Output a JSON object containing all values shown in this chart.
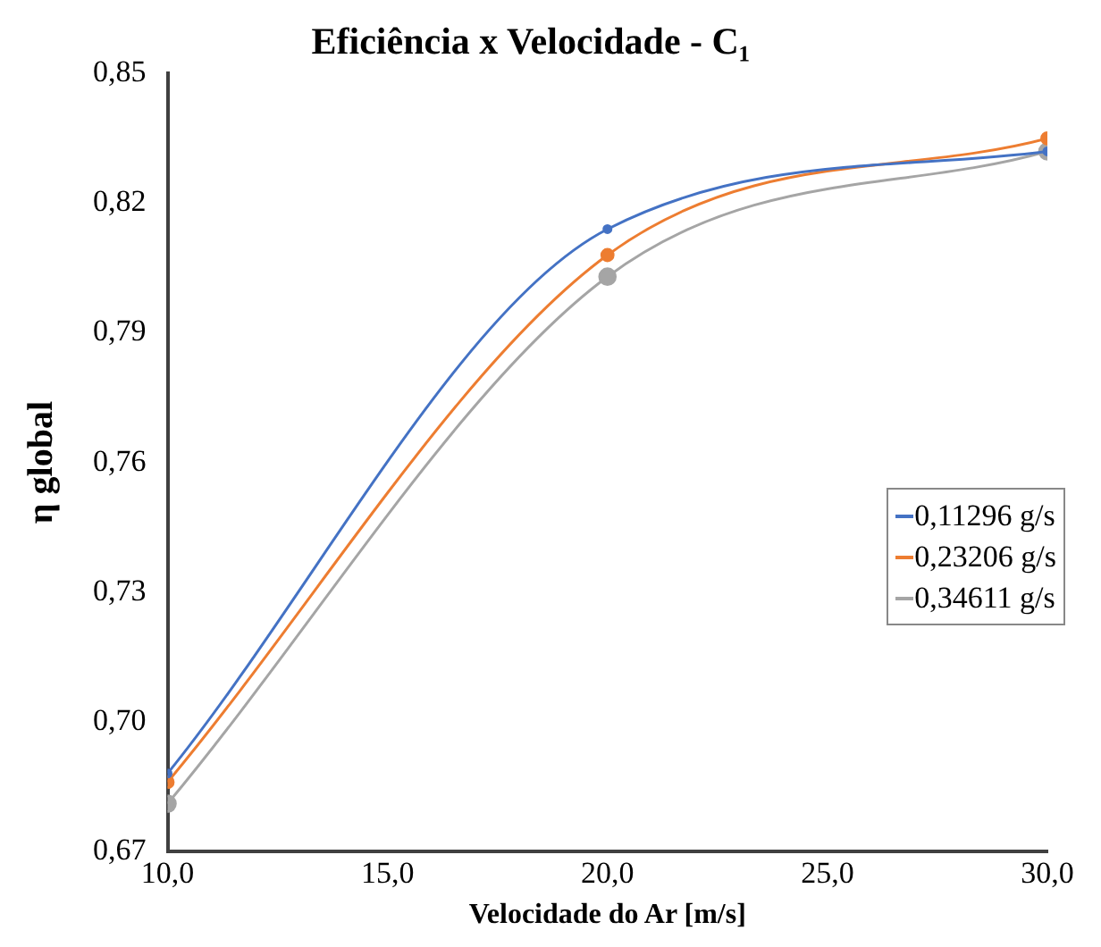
{
  "chart_data": {
    "type": "line",
    "title": "Eficiência x Velocidade - C₁",
    "xlabel": "Velocidade do Ar [m/s]",
    "ylabel": "η global",
    "x": [
      10,
      20,
      30
    ],
    "series": [
      {
        "name": "0,11296 g/s",
        "color": "#4472c4",
        "values": [
          0.688,
          0.814,
          0.832
        ]
      },
      {
        "name": "0,23206 g/s",
        "color": "#ed7d31",
        "values": [
          0.686,
          0.808,
          0.835
        ]
      },
      {
        "name": "0,34611 g/s",
        "color": "#a5a5a5",
        "values": [
          0.681,
          0.803,
          0.832
        ]
      }
    ],
    "xlim": [
      10,
      30
    ],
    "xticks": [
      {
        "value": 10,
        "label": "10,0"
      },
      {
        "value": 15,
        "label": "15,0"
      },
      {
        "value": 20,
        "label": "20,0"
      },
      {
        "value": 25,
        "label": "25,0"
      },
      {
        "value": 30,
        "label": "30,0"
      }
    ],
    "ylim": [
      0.67,
      0.85
    ],
    "yticks": [
      {
        "value": 0.67,
        "label": "0,67"
      },
      {
        "value": 0.7,
        "label": "0,70"
      },
      {
        "value": 0.73,
        "label": "0,73"
      },
      {
        "value": 0.76,
        "label": "0,76"
      },
      {
        "value": 0.79,
        "label": "0,79"
      },
      {
        "value": 0.82,
        "label": "0,82"
      },
      {
        "value": 0.85,
        "label": "0,85"
      }
    ],
    "grid": false,
    "legend": "right",
    "marker": "circle",
    "line_style": "solid"
  }
}
